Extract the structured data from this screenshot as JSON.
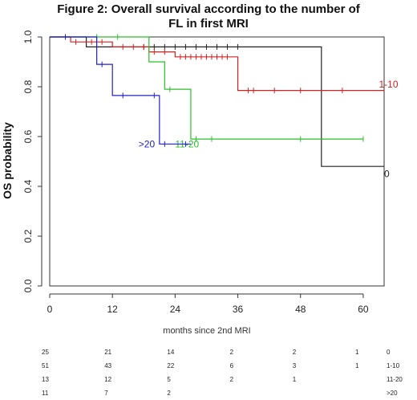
{
  "chart_data": {
    "type": "line",
    "title_lines": [
      "Figure 2: Overall survival according to the number of",
      "FL in first MRI"
    ],
    "xlabel": "months since 2nd MRI",
    "ylabel": "OS probability",
    "xlim": [
      0,
      64
    ],
    "ylim": [
      0,
      1.0
    ],
    "x_ticks": [
      0,
      12,
      24,
      36,
      48,
      60
    ],
    "y_ticks": [
      0.0,
      0.2,
      0.4,
      0.6,
      0.8,
      1.0
    ],
    "y_tick_labels": [
      "0.0",
      "0.2",
      "0.4",
      "0.6",
      "0.8",
      "1.0"
    ],
    "step": true,
    "series": [
      {
        "name": "0",
        "color": "#222222",
        "steps": [
          [
            0,
            1.0
          ],
          [
            7,
            0.96
          ],
          [
            52,
            0.48
          ],
          [
            64,
            0.48
          ]
        ],
        "censor": [
          18,
          20,
          22,
          24,
          26,
          28,
          30,
          32,
          34,
          36
        ],
        "label_at": [
          64,
          0.45
        ]
      },
      {
        "name": "1-10",
        "color": "#d62020",
        "steps": [
          [
            0,
            1.0
          ],
          [
            4,
            0.98
          ],
          [
            12,
            0.96
          ],
          [
            19,
            0.94
          ],
          [
            24,
            0.92
          ],
          [
            36,
            0.785
          ],
          [
            64,
            0.785
          ]
        ],
        "censor": [
          5,
          8,
          10,
          14,
          16,
          18,
          20,
          22,
          25,
          26,
          27,
          28,
          29,
          30,
          31,
          32,
          33,
          34,
          38,
          39,
          43,
          48,
          56
        ],
        "label_at": [
          63,
          0.81
        ]
      },
      {
        "name": "11-20",
        "color": "#2bbf2b",
        "steps": [
          [
            0,
            1.0
          ],
          [
            19,
            0.9
          ],
          [
            22,
            0.79
          ],
          [
            27,
            0.59
          ],
          [
            60,
            0.59
          ]
        ],
        "censor": [
          9,
          13,
          23,
          28,
          31,
          48,
          60
        ],
        "label_at": [
          24,
          0.57
        ]
      },
      {
        "name": ">20",
        "color": "#2020cc",
        "steps": [
          [
            0,
            1.0
          ],
          [
            9,
            0.89
          ],
          [
            12,
            0.765
          ],
          [
            21,
            0.57
          ],
          [
            27,
            0.57
          ]
        ],
        "censor": [
          3,
          10,
          14,
          20,
          22,
          26
        ],
        "label_at": [
          17,
          0.57
        ]
      }
    ],
    "risk_table": {
      "x": [
        0,
        12,
        24,
        36,
        48,
        60
      ],
      "rows": [
        {
          "label": "0",
          "values": [
            "25",
            "21",
            "14",
            "2",
            "2",
            "1"
          ]
        },
        {
          "label": "1-10",
          "values": [
            "51",
            "43",
            "22",
            "6",
            "3",
            "1"
          ]
        },
        {
          "label": "11-20",
          "values": [
            "13",
            "12",
            "5",
            "2",
            "1",
            ""
          ]
        },
        {
          "label": ">20",
          "values": [
            "11",
            "7",
            "2",
            "",
            "",
            ""
          ]
        }
      ]
    }
  }
}
